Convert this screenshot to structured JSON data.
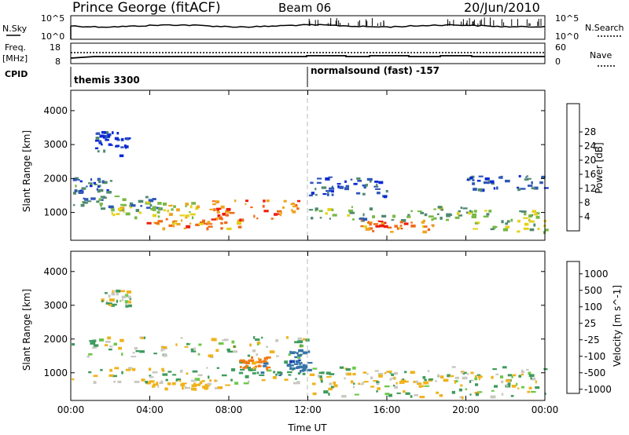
{
  "header": {
    "title": "Prince George (fitACF)",
    "beam": "Beam 06",
    "date": "20/Jun/2010"
  },
  "panels": {
    "nsky": {
      "left_label": "N.Sky",
      "right_label": "N.Search",
      "left_ticks": [
        "10^5",
        "10^0"
      ],
      "right_ticks": [
        "10^5",
        "10^0"
      ]
    },
    "freq": {
      "left_label_1": "Freq.",
      "left_label_2": "[MHz]",
      "right_label": "Nave",
      "left_ticks": [
        "18",
        "8"
      ],
      "right_ticks": [
        "60",
        "0"
      ]
    },
    "cpid": {
      "label": "CPID",
      "modes": [
        "themis 3300",
        "normalsound (fast) -157"
      ]
    }
  },
  "chart_data": [
    {
      "type": "heatmap",
      "title": "",
      "xlabel": "",
      "ylabel": "Slant Range [km]",
      "x_ticks": [
        "00:00",
        "04:00",
        "08:00",
        "12:00",
        "16:00",
        "20:00",
        "00:00"
      ],
      "y_ticks": [
        1000,
        2000,
        3000,
        4000
      ],
      "ylim": [
        180,
        4600
      ],
      "colorbar_label": "Power [dB]",
      "colorbar_ticks": [
        4,
        8,
        12,
        16,
        20,
        24,
        28
      ],
      "colorbar_colors": [
        "#0a28d8",
        "#2f57b8",
        "#4f8a6f",
        "#78b844",
        "#e4d21a",
        "#f0a41a",
        "#ef6a18",
        "#ee1d0d",
        "#ff1a10"
      ],
      "regions": [
        {
          "t0": 0.0,
          "t1": 2.0,
          "r0": 1600,
          "r1": 2050,
          "power": 10
        },
        {
          "t0": 0.0,
          "t1": 4.6,
          "r0": 1100,
          "r1": 1500,
          "power": 12
        },
        {
          "t0": 2.0,
          "t1": 6.5,
          "r0": 850,
          "r1": 1350,
          "power": 20
        },
        {
          "t0": 3.8,
          "t1": 8.6,
          "r0": 550,
          "r1": 850,
          "power": 26
        },
        {
          "t0": 7.0,
          "t1": 11.6,
          "r0": 800,
          "r1": 1400,
          "power": 28
        },
        {
          "t0": 1.2,
          "t1": 3.0,
          "r0": 2700,
          "r1": 3400,
          "power": 6
        },
        {
          "t0": 12.0,
          "t1": 20.0,
          "r0": 800,
          "r1": 1200,
          "power": 14
        },
        {
          "t0": 14.5,
          "t1": 18.5,
          "r0": 450,
          "r1": 800,
          "power": 26
        },
        {
          "t0": 12.0,
          "t1": 16.0,
          "r0": 1500,
          "r1": 2100,
          "power": 8
        },
        {
          "t0": 20.0,
          "t1": 24.0,
          "r0": 1700,
          "r1": 2100,
          "power": 8
        },
        {
          "t0": 20.0,
          "t1": 24.0,
          "r0": 450,
          "r1": 1100,
          "power": 16
        }
      ]
    },
    {
      "type": "heatmap",
      "title": "",
      "xlabel": "Time UT",
      "ylabel": "Slant Range [km]",
      "x_ticks": [
        "00:00",
        "04:00",
        "08:00",
        "12:00",
        "16:00",
        "20:00",
        "00:00"
      ],
      "y_ticks": [
        1000,
        2000,
        3000,
        4000
      ],
      "ylim": [
        180,
        4600
      ],
      "colorbar_label": "Velocity [m s^-1]",
      "colorbar_ticks": [
        1000,
        500,
        100,
        25,
        -25,
        -100,
        -500,
        -1000
      ],
      "colorbar_colors": [
        "#1a3fb4",
        "#3574a8",
        "#3f9b5c",
        "#6cc84a",
        "#c8c8c0",
        "#c8c8c0",
        "#f0b21c",
        "#f07a14",
        "#e8321a",
        "#ee1510"
      ],
      "regions": [
        {
          "t0": 0.0,
          "t1": 12.0,
          "r0": 1500,
          "r1": 2100,
          "velocity": 0
        },
        {
          "t0": 0.0,
          "t1": 24.0,
          "r0": 700,
          "r1": 1200,
          "velocity": 0
        },
        {
          "t0": 4.0,
          "t1": 8.0,
          "r0": 550,
          "r1": 800,
          "velocity": -150
        },
        {
          "t0": 8.5,
          "t1": 11.8,
          "r0": 950,
          "r1": 1400,
          "velocity": 300
        },
        {
          "t0": 8.5,
          "t1": 10.0,
          "r0": 1150,
          "r1": 1500,
          "velocity": -400
        },
        {
          "t0": 11.0,
          "t1": 12.0,
          "r0": 1100,
          "r1": 1700,
          "velocity": 600
        },
        {
          "t0": 12.0,
          "t1": 24.0,
          "r0": 300,
          "r1": 1100,
          "velocity": 0
        },
        {
          "t0": 1.5,
          "t1": 3.0,
          "r0": 3000,
          "r1": 3500,
          "velocity": 0
        }
      ]
    }
  ]
}
